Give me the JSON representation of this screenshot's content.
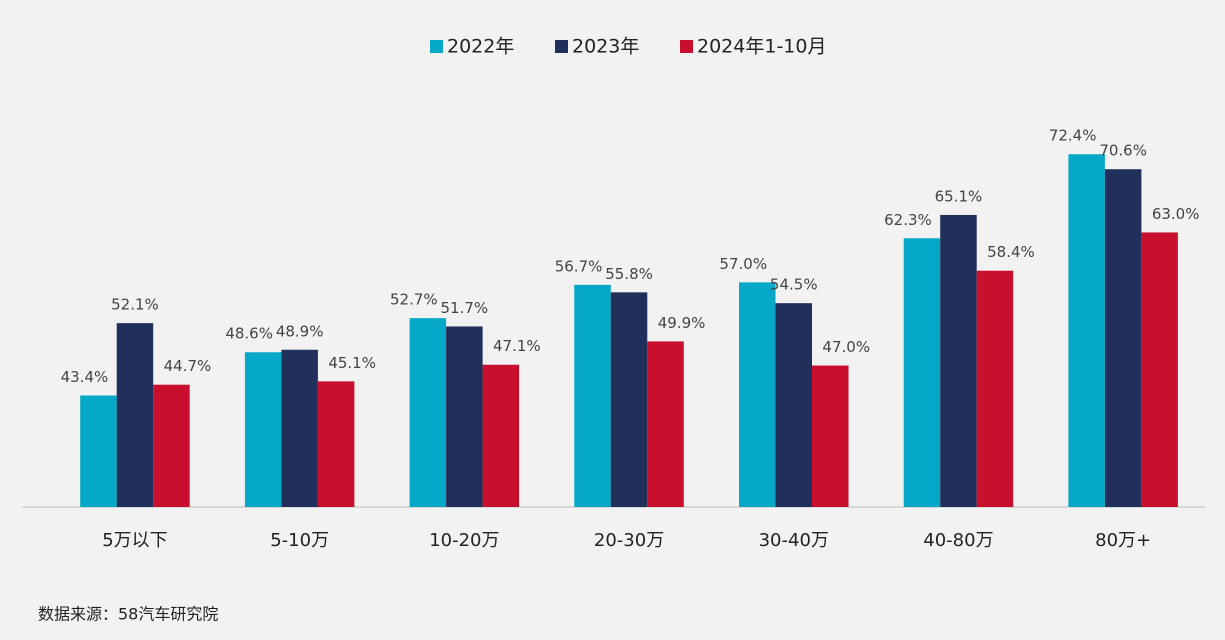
{
  "chart_data": {
    "type": "bar",
    "categories": [
      "5万以下",
      "5-10万",
      "10-20万",
      "20-30万",
      "30-40万",
      "40-80万",
      "80万+"
    ],
    "series": [
      {
        "name": "2022年",
        "color": "#05a8c7",
        "values": [
          43.4,
          48.6,
          52.7,
          56.7,
          57.0,
          62.3,
          72.4
        ],
        "value_labels": [
          "43.4%",
          "48.6%",
          "52.7%",
          "56.7%",
          "57.0%",
          "62.3%",
          "72.4%"
        ]
      },
      {
        "name": "2023年",
        "color": "#21305a",
        "values": [
          52.1,
          48.9,
          51.7,
          55.8,
          54.5,
          65.1,
          70.6
        ],
        "value_labels": [
          "52.1%",
          "48.9%",
          "51.7%",
          "55.8%",
          "54.5%",
          "65.1%",
          "70.6%"
        ]
      },
      {
        "name": "2024年1-10月",
        "color": "#c8102e",
        "values": [
          44.7,
          45.1,
          47.1,
          49.9,
          47.0,
          58.4,
          63.0
        ],
        "value_labels": [
          "44.7%",
          "45.1%",
          "47.1%",
          "49.9%",
          "47.0%",
          "58.4%",
          "63.0%"
        ]
      }
    ],
    "ylim": [
      30,
      80
    ],
    "legend": "top",
    "source": "数据来源：58汽车研究院"
  }
}
